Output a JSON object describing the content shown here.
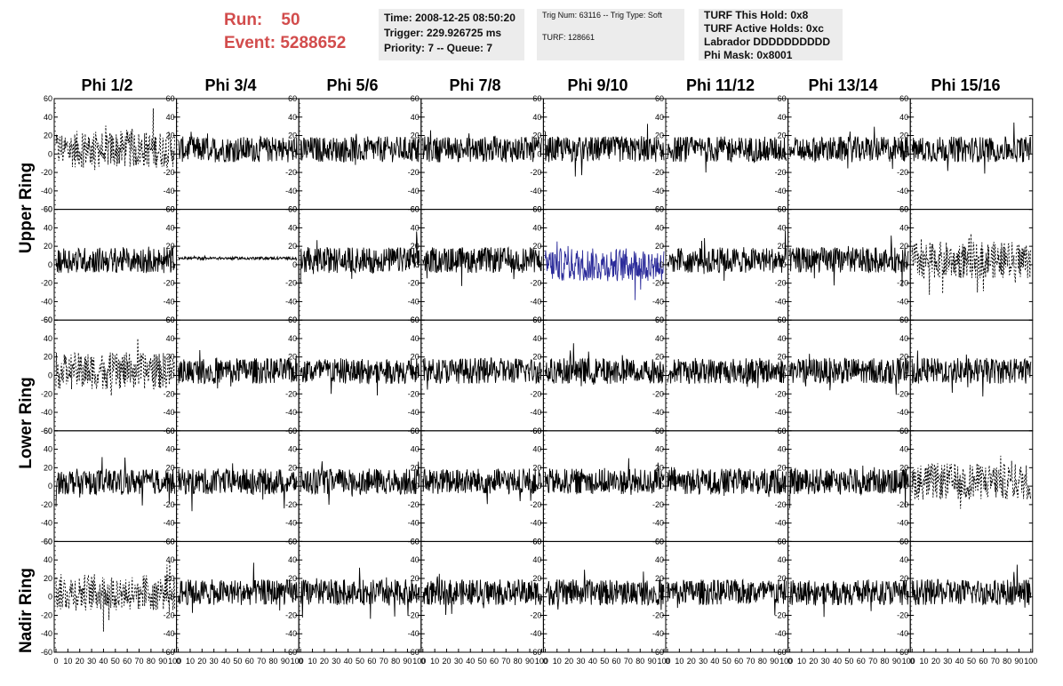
{
  "run_label": "Run:    50",
  "event_label": "Event: 5288652",
  "time_info": {
    "line1": "Time: 2008-12-25 08:50:20",
    "line2": "Trigger: 229.926725 ms",
    "line3": "Priority: 7 -- Queue: 7"
  },
  "trig_info": {
    "line1": "Trig Num: 63116 -- Trig Type: Soft",
    "line2": "TURF: 128661"
  },
  "turf_info": {
    "line1": "TURF This Hold: 0x8",
    "line2": "TURF Active Holds: 0xc",
    "line3": "Labrador DDDDDDDDDD",
    "line4": "Phi Mask: 0x8001"
  },
  "columns": [
    "Phi 1/2",
    "Phi 3/4",
    "Phi 5/6",
    "Phi 7/8",
    "Phi 9/10",
    "Phi 11/12",
    "Phi 13/14",
    "Phi 15/16"
  ],
  "rows": [
    "Upper Ring",
    "Lower Ring",
    "Nadir Ring"
  ],
  "colors": {
    "run_text": "#d24c4c",
    "info_bg": "#ececec",
    "trace": "#000000",
    "highlight_trace": "#2b2b9a"
  },
  "chart_data": {
    "type": "line",
    "xlim": [
      0,
      100
    ],
    "ylim": [
      -60,
      60
    ],
    "yticks": [
      -60,
      -40,
      -20,
      0,
      20,
      40,
      60
    ],
    "xticks": [
      0,
      10,
      20,
      30,
      40,
      50,
      60,
      70,
      80,
      90,
      100
    ],
    "grid": false,
    "panels_per_row": 8,
    "panel_rows": 5,
    "panel_styles": [
      [
        "dashed",
        "solid",
        "solid",
        "solid",
        "solid",
        "solid",
        "solid",
        "solid"
      ],
      [
        "solid",
        "flat",
        "solid",
        "solid",
        "blue",
        "solid",
        "solid",
        "dashed"
      ],
      [
        "dashed",
        "solid",
        "solid",
        "solid",
        "solid",
        "solid",
        "solid",
        "solid"
      ],
      [
        "solid",
        "solid",
        "solid",
        "solid",
        "solid",
        "solid",
        "solid",
        "dashed"
      ],
      [
        "dashed",
        "solid",
        "solid",
        "solid",
        "solid",
        "solid",
        "solid",
        "solid"
      ]
    ]
  }
}
